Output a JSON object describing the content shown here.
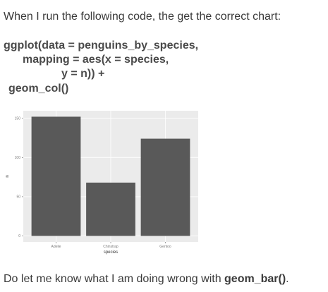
{
  "intro": "When I run the following code, the get the correct chart:",
  "code": [
    "ggplot(data = penguins_by_species,",
    "mapping = aes(x = species,",
    "y = n)) +",
    "geom_col()"
  ],
  "chart_data": {
    "type": "bar",
    "categories": [
      "Adelie",
      "Chinstrap",
      "Gentoo"
    ],
    "values": [
      152,
      68,
      124
    ],
    "color": "#595959",
    "xlabel": "species",
    "ylabel": "n",
    "ylim": [
      -7.6,
      159.6
    ],
    "yticks": [
      0,
      50,
      100,
      150
    ],
    "grid": true
  },
  "outro": {
    "text": "Do let me know what I am doing wrong with ",
    "bold": "geom_bar()",
    "end": "."
  }
}
